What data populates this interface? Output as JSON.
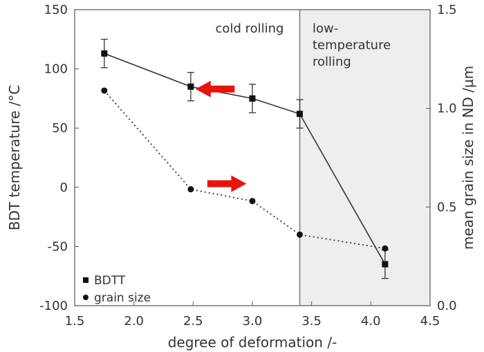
{
  "chart_data": {
    "type": "line",
    "xlabel": "degree of deformation /-",
    "ylabel_left": "BDT temperature /°C",
    "ylabel_right": "mean grain size in ND /µm",
    "xlim": [
      1.5,
      4.5
    ],
    "ylim_left": [
      -100,
      150
    ],
    "ylim_right": [
      0.0,
      1.5
    ],
    "x_ticks": [
      "1.5",
      "2.0",
      "2.5",
      "3.0",
      "3.5",
      "4.0",
      "4.5"
    ],
    "y_left_ticks": [
      "150",
      "100",
      "50",
      "0",
      "-50",
      "-100"
    ],
    "y_right_ticks": [
      "1.5",
      "1.0",
      "0.5",
      "0.0"
    ],
    "grid": false,
    "legend_position": "bottom-left",
    "regions": [
      {
        "label": "cold rolling",
        "x_range": [
          1.5,
          3.4
        ],
        "shaded": false
      },
      {
        "label_lines": [
          "low-",
          "temperature",
          "rolling"
        ],
        "x_range": [
          3.4,
          4.5
        ],
        "shaded": true,
        "shade_color": "#eeeeee"
      }
    ],
    "divider_x": 3.4,
    "series": [
      {
        "name": "BDTT",
        "axis": "left",
        "marker": "square",
        "line_style": "solid",
        "x": [
          1.75,
          2.48,
          3.0,
          3.4,
          4.12
        ],
        "y": [
          113,
          85,
          75,
          62,
          -65
        ],
        "yerr": [
          12,
          12,
          12,
          12,
          12
        ]
      },
      {
        "name": "grain size",
        "axis": "right",
        "marker": "circle",
        "line_style": "dotted",
        "x": [
          1.75,
          2.48,
          3.0,
          3.4,
          4.12
        ],
        "y": [
          1.09,
          0.59,
          0.53,
          0.36,
          0.29
        ]
      }
    ],
    "annotations": [
      {
        "type": "arrow",
        "direction": "left",
        "color": "#e8140c",
        "x_from": 2.85,
        "x_to": 2.52,
        "y_left": 83
      },
      {
        "type": "arrow",
        "direction": "right",
        "color": "#e8140c",
        "x_from": 2.62,
        "x_to": 2.95,
        "y_left": 3
      }
    ],
    "colors": {
      "line": "#333333",
      "marker": "#111111",
      "axis": "#555555"
    }
  }
}
